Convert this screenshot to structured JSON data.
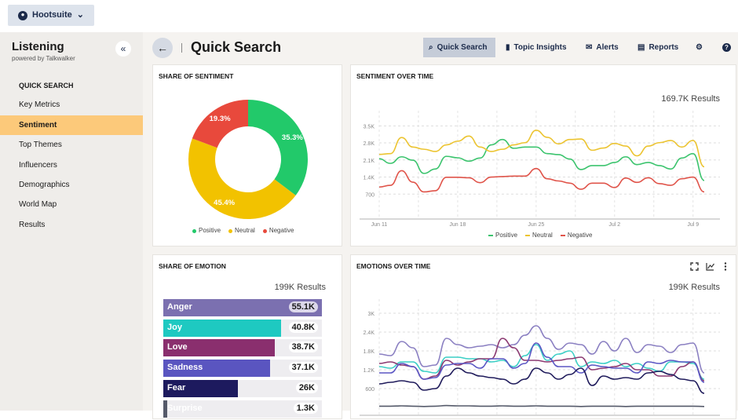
{
  "topbar": {
    "brand": "Hootsuite"
  },
  "sidebar": {
    "title": "Listening",
    "subtitle": "powered by Talkwalker",
    "section": "QUICK SEARCH",
    "items": [
      {
        "label": "Key Metrics"
      },
      {
        "label": "Sentiment",
        "active": true
      },
      {
        "label": "Top Themes"
      },
      {
        "label": "Influencers"
      },
      {
        "label": "Demographics"
      },
      {
        "label": "World Map"
      },
      {
        "label": "Results"
      }
    ]
  },
  "header": {
    "title": "Quick Search",
    "nav": [
      {
        "label": "Quick Search",
        "icon": "search-icon",
        "active": true
      },
      {
        "label": "Topic Insights",
        "icon": "bar-chart-icon"
      },
      {
        "label": "Alerts",
        "icon": "envelope-icon"
      },
      {
        "label": "Reports",
        "icon": "document-icon"
      }
    ]
  },
  "cards": {
    "share_sentiment": {
      "title": "SHARE OF SENTIMENT"
    },
    "sentiment_time": {
      "title": "SENTIMENT OVER TIME",
      "results": "169.7K Results"
    },
    "share_emotion": {
      "title": "SHARE OF EMOTION",
      "results": "199K Results"
    },
    "emotions_time": {
      "title": "EMOTIONS OVER TIME",
      "results": "199K Results"
    }
  },
  "chart_data": [
    {
      "type": "pie",
      "donut": true,
      "labels": [
        "Positive",
        "Neutral",
        "Negative"
      ],
      "values": [
        35.3,
        45.4,
        19.3
      ],
      "value_labels": [
        "35.3%",
        "45.4%",
        "19.3%"
      ],
      "colors": [
        "#22c96a",
        "#f2c200",
        "#e8493c"
      ],
      "legend": "bottom"
    },
    {
      "type": "line",
      "x_ticks": [
        "Jun 11",
        "Jun 18",
        "Jun 25",
        "Jul 2",
        "Jul 9"
      ],
      "y_ticks": [
        "3.5K",
        "2.8K",
        "2.1K",
        "1.4K",
        "700"
      ],
      "ylim": [
        0,
        3800
      ],
      "legend": "bottom",
      "grid": true,
      "series": [
        {
          "name": "Positive",
          "color": "#3cc46e",
          "values": [
            2150,
            1960,
            2230,
            2090,
            1550,
            1730,
            2250,
            2190,
            2050,
            2180,
            2720,
            2940,
            2580,
            2630,
            2630,
            2360,
            2320,
            2140,
            1710,
            1870,
            1870,
            2000,
            2230,
            1910,
            2000,
            1870,
            1730,
            2180,
            2360,
            1260
          ]
        },
        {
          "name": "Neutral",
          "color": "#ecc431",
          "values": [
            2330,
            2360,
            3020,
            2630,
            2540,
            2450,
            2720,
            2870,
            3080,
            2630,
            2450,
            2540,
            2720,
            2810,
            3320,
            3030,
            2760,
            2940,
            2960,
            2500,
            2590,
            2780,
            2670,
            2270,
            2670,
            2810,
            2900,
            2630,
            2900,
            1820
          ]
        },
        {
          "name": "Negative",
          "color": "#e0544a",
          "values": [
            990,
            1060,
            1660,
            1190,
            790,
            840,
            1390,
            1390,
            1370,
            1170,
            1400,
            1420,
            1440,
            1440,
            1750,
            1330,
            1240,
            1150,
            900,
            1150,
            1150,
            970,
            1360,
            1180,
            1370,
            1130,
            1060,
            1330,
            1400,
            790
          ]
        }
      ]
    },
    {
      "type": "bar",
      "orientation": "horizontal",
      "categories": [
        "Anger",
        "Joy",
        "Love",
        "Sadness",
        "Fear",
        "Surprise"
      ],
      "values": [
        55.1,
        40.8,
        38.7,
        37.1,
        26,
        1.3
      ],
      "value_labels": [
        "55.1K",
        "40.8K",
        "38.7K",
        "37.1K",
        "26K",
        "1.3K"
      ],
      "colors": [
        "#7b70b0",
        "#1ec9c1",
        "#8a2f6e",
        "#5a55c0",
        "#1d1a5e",
        "#555a6a"
      ]
    },
    {
      "type": "line",
      "y_ticks": [
        "3K",
        "2.4K",
        "1.8K",
        "1.2K",
        "600"
      ],
      "ylim": [
        0,
        3200
      ],
      "grid": true,
      "series": [
        {
          "name": "Anger",
          "color": "#8b80c2",
          "values": [
            1700,
            1650,
            2100,
            1900,
            1300,
            1350,
            2200,
            2000,
            1900,
            1950,
            2000,
            1900,
            2000,
            2300,
            2600,
            2200,
            1850,
            2050,
            2000,
            1700,
            2100,
            1800,
            2200,
            1750,
            2000,
            1950,
            1750,
            2000,
            2050,
            1100
          ]
        },
        {
          "name": "Joy",
          "color": "#3ccfc6",
          "values": [
            1300,
            1250,
            1450,
            1450,
            1150,
            1100,
            1600,
            1600,
            1550,
            1550,
            1450,
            1500,
            1300,
            1650,
            2000,
            1500,
            1700,
            1800,
            1300,
            1450,
            1400,
            1500,
            1300,
            1400,
            1250,
            1150,
            1450,
            1450,
            1400,
            900
          ]
        },
        {
          "name": "Love",
          "color": "#8c3a72",
          "values": [
            1400,
            1450,
            1350,
            1300,
            900,
            1000,
            1500,
            1350,
            1450,
            1550,
            1550,
            2200,
            1900,
            1500,
            1500,
            1450,
            1500,
            1550,
            1600,
            1200,
            1250,
            1300,
            1400,
            1200,
            1200,
            1000,
            1000,
            1300,
            1450,
            850
          ]
        },
        {
          "name": "Sadness",
          "color": "#5b57c4",
          "values": [
            1100,
            1100,
            1400,
            1300,
            900,
            950,
            1350,
            1400,
            1400,
            1250,
            1550,
            1550,
            1250,
            1400,
            2050,
            1600,
            1300,
            1300,
            1100,
            1350,
            1300,
            1250,
            1250,
            1100,
            1450,
            1400,
            1500,
            1450,
            1450,
            800
          ]
        },
        {
          "name": "Fear",
          "color": "#201c5c",
          "values": [
            750,
            800,
            850,
            800,
            550,
            600,
            1000,
            1250,
            1100,
            1000,
            950,
            900,
            750,
            900,
            1250,
            1100,
            900,
            1050,
            1250,
            700,
            1000,
            900,
            950,
            900,
            1100,
            1150,
            1050,
            900,
            850,
            450
          ]
        },
        {
          "name": "Surprise",
          "color": "#555a6a",
          "values": [
            40,
            40,
            50,
            40,
            30,
            40,
            60,
            50,
            50,
            40,
            40,
            50,
            40,
            40,
            50,
            40,
            40,
            40,
            30,
            40,
            40,
            40,
            30,
            40,
            40,
            40,
            40,
            40,
            40,
            30
          ]
        }
      ]
    }
  ]
}
